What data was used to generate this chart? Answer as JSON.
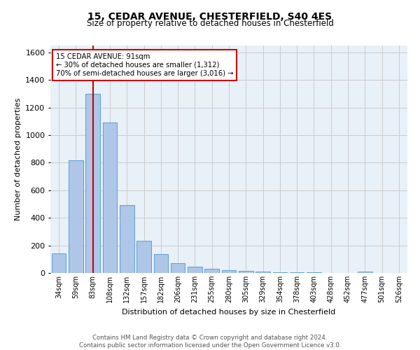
{
  "title": "15, CEDAR AVENUE, CHESTERFIELD, S40 4ES",
  "subtitle": "Size of property relative to detached houses in Chesterfield",
  "xlabel": "Distribution of detached houses by size in Chesterfield",
  "ylabel": "Number of detached properties",
  "bar_labels": [
    "34sqm",
    "59sqm",
    "83sqm",
    "108sqm",
    "132sqm",
    "157sqm",
    "182sqm",
    "206sqm",
    "231sqm",
    "255sqm",
    "280sqm",
    "305sqm",
    "329sqm",
    "354sqm",
    "378sqm",
    "403sqm",
    "428sqm",
    "452sqm",
    "477sqm",
    "501sqm",
    "526sqm"
  ],
  "bar_values": [
    140,
    815,
    1300,
    1090,
    490,
    235,
    135,
    70,
    45,
    30,
    20,
    15,
    10,
    7,
    4,
    3,
    0,
    0,
    8,
    0,
    0
  ],
  "bar_color": "#aec6e8",
  "bar_edgecolor": "#5a9fd4",
  "vline_x": 2,
  "vline_color": "#cc0000",
  "annotation_title": "15 CEDAR AVENUE: 91sqm",
  "annotation_line1": "← 30% of detached houses are smaller (1,312)",
  "annotation_line2": "70% of semi-detached houses are larger (3,016) →",
  "annotation_box_edgecolor": "#cc0000",
  "ylim": [
    0,
    1650
  ],
  "yticks": [
    0,
    200,
    400,
    600,
    800,
    1000,
    1200,
    1400,
    1600
  ],
  "footer_line1": "Contains HM Land Registry data © Crown copyright and database right 2024.",
  "footer_line2": "Contains public sector information licensed under the Open Government Licence v3.0.",
  "bg_color": "#ffffff",
  "plot_bg_color": "#e8f0f8",
  "grid_color": "#cccccc"
}
